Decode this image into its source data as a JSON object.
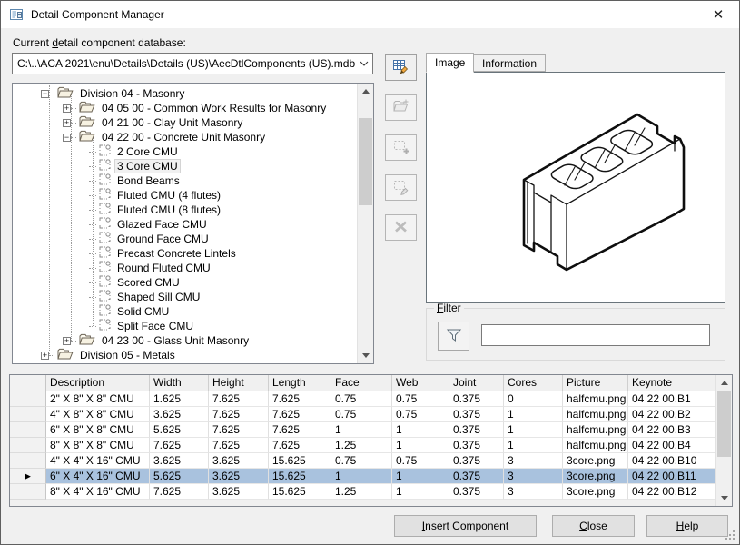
{
  "window": {
    "title": "Detail Component Manager",
    "close_glyph": "✕"
  },
  "database": {
    "label": {
      "text": "Current detail component database:",
      "accel": 8
    },
    "value": "C:\\..\\ACA 2021\\enu\\Details\\Details (US)\\AecDtlComponents (US).mdb"
  },
  "toolbar": {
    "buttons": [
      {
        "icon": "edit-database-icon",
        "enabled": true
      },
      {
        "icon": "add-group-icon",
        "enabled": false
      },
      {
        "icon": "add-component-icon",
        "enabled": false
      },
      {
        "icon": "edit-component-icon",
        "enabled": false
      },
      {
        "icon": "delete-component-icon",
        "enabled": false
      }
    ]
  },
  "tree": {
    "items": [
      {
        "level": 1,
        "type": "folder",
        "expander": "minus",
        "label": "Division 04 - Masonry"
      },
      {
        "level": 2,
        "type": "folder",
        "expander": "plus",
        "label": "04 05 00 - Common Work Results for Masonry"
      },
      {
        "level": 2,
        "type": "folder",
        "expander": "plus",
        "label": "04 21 00 - Clay Unit Masonry"
      },
      {
        "level": 2,
        "type": "folder",
        "expander": "minus",
        "label": "04 22 00 - Concrete Unit Masonry"
      },
      {
        "level": 3,
        "type": "component",
        "label": "2 Core CMU"
      },
      {
        "level": 3,
        "type": "component",
        "label": "3 Core CMU",
        "selected": true
      },
      {
        "level": 3,
        "type": "component",
        "label": "Bond Beams"
      },
      {
        "level": 3,
        "type": "component",
        "label": "Fluted CMU (4 flutes)"
      },
      {
        "level": 3,
        "type": "component",
        "label": "Fluted CMU (8 flutes)"
      },
      {
        "level": 3,
        "type": "component",
        "label": "Glazed Face CMU"
      },
      {
        "level": 3,
        "type": "component",
        "label": "Ground Face CMU"
      },
      {
        "level": 3,
        "type": "component",
        "label": "Precast Concrete Lintels"
      },
      {
        "level": 3,
        "type": "component",
        "label": "Round Fluted CMU"
      },
      {
        "level": 3,
        "type": "component",
        "label": "Scored CMU"
      },
      {
        "level": 3,
        "type": "component",
        "label": "Shaped Sill CMU"
      },
      {
        "level": 3,
        "type": "component",
        "label": "Solid CMU"
      },
      {
        "level": 3,
        "type": "component",
        "label": "Split Face CMU"
      },
      {
        "level": 2,
        "type": "folder",
        "expander": "plus",
        "label": "04 23 00 - Glass Unit Masonry"
      },
      {
        "level": 1,
        "type": "folder",
        "expander": "plus",
        "label": "Division 05 - Metals"
      }
    ]
  },
  "tabs": {
    "items": [
      "Image",
      "Information"
    ],
    "active_index": 0
  },
  "preview": {
    "content": "3-core-cmu-isometric-drawing"
  },
  "filter": {
    "label": {
      "text": "Filter",
      "accel": 0
    },
    "input_value": "",
    "icon": "funnel-icon"
  },
  "table": {
    "headers": [
      "Description",
      "Width",
      "Height",
      "Length",
      "Face",
      "Web",
      "Joint",
      "Cores",
      "Picture",
      "Keynote"
    ],
    "rows": [
      [
        "2\" X 8\" X 8\" CMU",
        "1.625",
        "7.625",
        "7.625",
        "0.75",
        "0.75",
        "0.375",
        "0",
        "halfcmu.png",
        "04 22 00.B1"
      ],
      [
        "4\" X 8\" X 8\" CMU",
        "3.625",
        "7.625",
        "7.625",
        "0.75",
        "0.75",
        "0.375",
        "1",
        "halfcmu.png",
        "04 22 00.B2"
      ],
      [
        "6\" X 8\" X 8\" CMU",
        "5.625",
        "7.625",
        "7.625",
        "1",
        "1",
        "0.375",
        "1",
        "halfcmu.png",
        "04 22 00.B3"
      ],
      [
        "8\" X 8\" X 8\" CMU",
        "7.625",
        "7.625",
        "7.625",
        "1.25",
        "1",
        "0.375",
        "1",
        "halfcmu.png",
        "04 22 00.B4"
      ],
      [
        "4\" X 4\" X 16\" CMU",
        "3.625",
        "3.625",
        "15.625",
        "0.75",
        "0.75",
        "0.375",
        "3",
        "3core.png",
        "04 22 00.B10"
      ],
      [
        "6\" X 4\" X 16\" CMU",
        "5.625",
        "3.625",
        "15.625",
        "1",
        "1",
        "0.375",
        "3",
        "3core.png",
        "04 22 00.B11"
      ],
      [
        "8\" X 4\" X 16\" CMU",
        "7.625",
        "3.625",
        "15.625",
        "1.25",
        "1",
        "0.375",
        "3",
        "3core.png",
        "04 22 00.B12"
      ]
    ],
    "selected_index": 5,
    "selected_marker": "▶"
  },
  "buttons": {
    "insert": {
      "text": "Insert Component",
      "accel": 0
    },
    "close": {
      "text": "Close",
      "accel": 0
    },
    "help": {
      "text": "Help",
      "accel": 0
    }
  },
  "colors": {
    "selection": "#a9c2de",
    "titlebar": "#ffffff",
    "dialog_bg": "#f0f0f0"
  }
}
